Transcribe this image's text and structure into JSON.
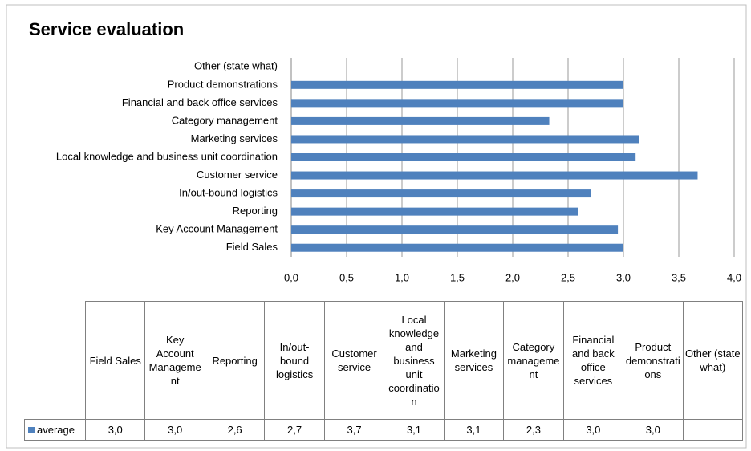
{
  "chart_data": {
    "type": "bar",
    "orientation": "horizontal",
    "title": "Service evaluation",
    "categories": [
      "Field Sales",
      "Key Account Management",
      "Reporting",
      "In/out-bound logistics",
      "Customer service",
      "Local knowledge and business unit coordination",
      "Marketing services",
      "Category management",
      "Financial and back office services",
      "Product demonstrations",
      "Other (state what)"
    ],
    "series": [
      {
        "name": "average",
        "color": "#4f81bd",
        "values": [
          3.0,
          2.95,
          2.59,
          2.71,
          3.67,
          3.11,
          3.14,
          2.33,
          3.0,
          3.0,
          null
        ],
        "value_labels": [
          "3,0",
          "3,0",
          "2,6",
          "2,7",
          "3,7",
          "3,1",
          "3,1",
          "2,3",
          "3,0",
          "3,0",
          null
        ]
      }
    ],
    "xlim": [
      0,
      4
    ],
    "xticks": [
      {
        "value": 0,
        "label": "0,0"
      },
      {
        "value": 0.5,
        "label": "0,5"
      },
      {
        "value": 1,
        "label": "1,0"
      },
      {
        "value": 1.5,
        "label": "1,5"
      },
      {
        "value": 2,
        "label": "2,0"
      },
      {
        "value": 2.5,
        "label": "2,5"
      },
      {
        "value": 3,
        "label": "3,0"
      },
      {
        "value": 3.5,
        "label": "3,5"
      },
      {
        "value": 4,
        "label": "4,0"
      }
    ],
    "grid": true,
    "data_table": true
  }
}
